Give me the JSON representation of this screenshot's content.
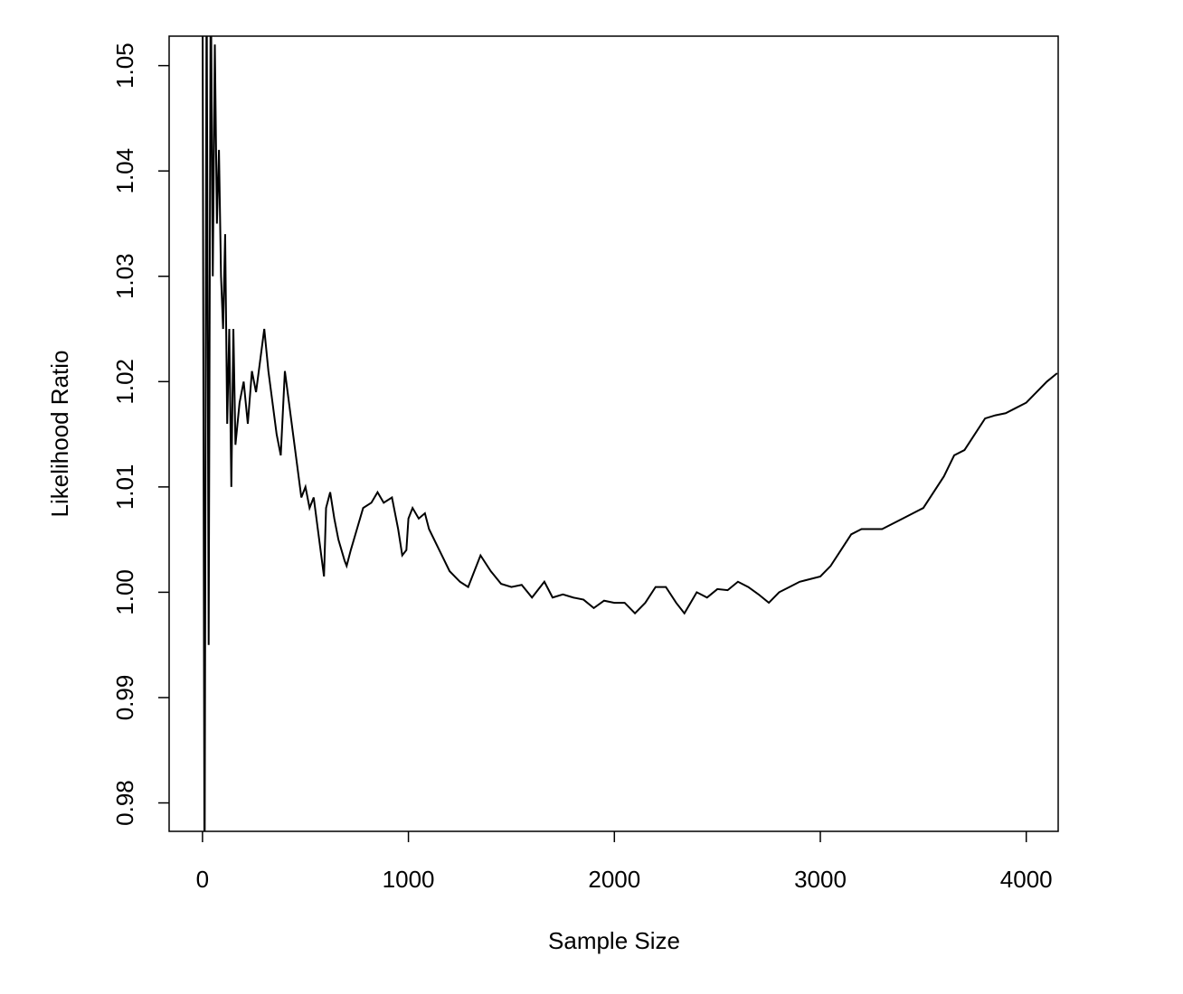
{
  "chart_data": {
    "type": "line",
    "x_label": "Sample Size",
    "y_label": "Likelihood Ratio",
    "x": [
      0,
      10,
      20,
      30,
      40,
      50,
      60,
      70,
      80,
      90,
      100,
      110,
      120,
      130,
      140,
      150,
      160,
      180,
      200,
      220,
      240,
      260,
      280,
      300,
      320,
      340,
      360,
      380,
      400,
      420,
      440,
      460,
      480,
      500,
      520,
      540,
      560,
      580,
      590,
      600,
      620,
      640,
      660,
      690,
      700,
      720,
      750,
      780,
      820,
      850,
      880,
      920,
      950,
      970,
      990,
      1000,
      1020,
      1050,
      1080,
      1100,
      1150,
      1200,
      1250,
      1290,
      1320,
      1350,
      1400,
      1450,
      1500,
      1550,
      1600,
      1660,
      1700,
      1750,
      1800,
      1850,
      1900,
      1950,
      2000,
      2050,
      2100,
      2150,
      2200,
      2250,
      2300,
      2340,
      2400,
      2450,
      2500,
      2550,
      2600,
      2650,
      2700,
      2750,
      2800,
      2850,
      2900,
      3000,
      3050,
      3100,
      3150,
      3200,
      3300,
      3400,
      3500,
      3600,
      3650,
      3700,
      3750,
      3800,
      3850,
      3900,
      3950,
      4000,
      4050,
      4100,
      4150
    ],
    "values": [
      1.06,
      0.97,
      1.06,
      0.995,
      1.06,
      1.03,
      1.052,
      1.035,
      1.042,
      1.03,
      1.025,
      1.034,
      1.016,
      1.025,
      1.01,
      1.025,
      1.014,
      1.018,
      1.02,
      1.016,
      1.021,
      1.019,
      1.022,
      1.025,
      1.021,
      1.018,
      1.015,
      1.013,
      1.021,
      1.018,
      1.015,
      1.012,
      1.009,
      1.01,
      1.008,
      1.009,
      1.006,
      1.003,
      1.0015,
      1.008,
      1.0095,
      1.007,
      1.005,
      1.003,
      1.0025,
      1.004,
      1.006,
      1.008,
      1.0085,
      1.0095,
      1.0085,
      1.009,
      1.006,
      1.0035,
      1.004,
      1.007,
      1.008,
      1.007,
      1.0075,
      1.006,
      1.004,
      1.002,
      1.001,
      1.0005,
      1.002,
      1.0035,
      1.002,
      1.0008,
      1.0005,
      1.0007,
      0.9995,
      1.001,
      0.9995,
      0.9998,
      0.9995,
      0.9993,
      0.9985,
      0.9992,
      0.999,
      0.999,
      0.998,
      0.999,
      1.0005,
      1.0005,
      0.999,
      0.998,
      1.0,
      0.9995,
      1.0003,
      1.0002,
      1.001,
      1.0005,
      0.9998,
      0.999,
      1.0,
      1.0005,
      1.001,
      1.0015,
      1.0025,
      1.004,
      1.0055,
      1.006,
      1.006,
      1.007,
      1.008,
      1.011,
      1.013,
      1.0135,
      1.015,
      1.0165,
      1.0168,
      1.017,
      1.0175,
      1.018,
      1.019,
      1.02,
      1.0208
    ],
    "color": "#000000",
    "xlim": [
      -162,
      4155
    ],
    "ylim": [
      0.9773,
      1.0528
    ],
    "xticks": [
      0,
      1000,
      2000,
      3000,
      4000
    ],
    "yticks": [
      0.98,
      0.99,
      {
        "value": 1.0,
        "label": "1.00"
      },
      1.01,
      1.02,
      1.03,
      1.04,
      1.05
    ],
    "grid": false
  }
}
